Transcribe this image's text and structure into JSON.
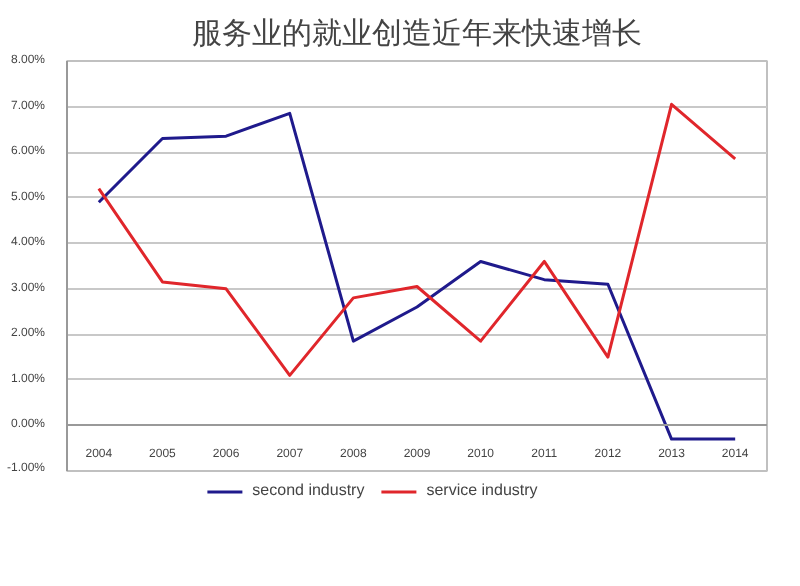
{
  "chart_data": {
    "type": "line",
    "title": "服务业的就业创造近年来快速增长",
    "categories": [
      "2004",
      "2005",
      "2006",
      "2007",
      "2008",
      "2009",
      "2010",
      "2011",
      "2012",
      "2013",
      "2014"
    ],
    "series": [
      {
        "name": "second industry",
        "color": "#1f1a8c",
        "values": [
          4.9,
          6.3,
          6.35,
          6.85,
          1.85,
          2.6,
          3.6,
          3.2,
          3.1,
          -0.3,
          -0.3
        ]
      },
      {
        "name": "service industry",
        "color": "#e0262b",
        "values": [
          5.2,
          3.15,
          3.0,
          1.1,
          2.8,
          3.05,
          1.85,
          3.6,
          1.5,
          7.05,
          5.85
        ]
      }
    ],
    "ylim": [
      -1,
      8
    ],
    "yticks": [
      {
        "value": -1,
        "label": "-1.00%"
      },
      {
        "value": 0,
        "label": "0.00%"
      },
      {
        "value": 1,
        "label": "1.00%"
      },
      {
        "value": 2,
        "label": "2.00%"
      },
      {
        "value": 3,
        "label": "3.00%"
      },
      {
        "value": 4,
        "label": "4.00%"
      },
      {
        "value": 5,
        "label": "5.00%"
      },
      {
        "value": 6,
        "label": "6.00%"
      },
      {
        "value": 7,
        "label": "7.00%"
      },
      {
        "value": 8,
        "label": "8.00%"
      }
    ],
    "grid": "y",
    "legend": "bottom",
    "marker": "none",
    "line_style": "solid"
  }
}
